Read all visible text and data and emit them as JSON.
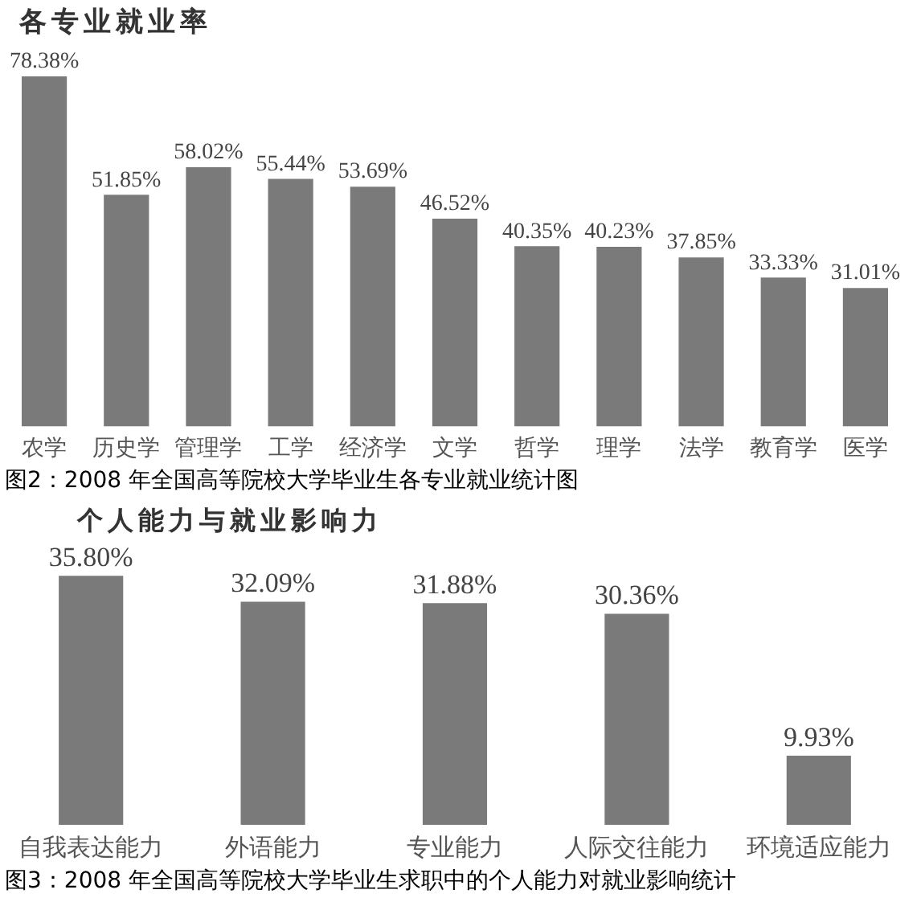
{
  "chart_data": [
    {
      "type": "bar",
      "title": "各专业就业率",
      "categories": [
        "农学",
        "历史学",
        "管理学",
        "工学",
        "经济学",
        "文学",
        "哲学",
        "理学",
        "法学",
        "教育学",
        "医学"
      ],
      "values": [
        78.38,
        51.85,
        58.02,
        55.44,
        53.69,
        46.52,
        40.35,
        40.23,
        37.85,
        33.33,
        31.01
      ],
      "value_labels": [
        "78.38%",
        "51.85%",
        "58.02%",
        "55.44%",
        "53.69%",
        "46.52%",
        "40.35%",
        "40.23%",
        "37.85%",
        "33.33%",
        "31.01%"
      ],
      "color": "#7a7a7a",
      "tick_labels": "x",
      "annotations": [
        "图2：2008 年全国高等院校大学毕业生各专业就业统计图"
      ]
    },
    {
      "type": "bar",
      "title": "个人能力与就业影响力",
      "categories": [
        "自我表达能力",
        "外语能力",
        "专业能力",
        "人际交往能力",
        "环境适应能力"
      ],
      "values": [
        35.8,
        32.09,
        31.88,
        30.36,
        9.93
      ],
      "value_labels": [
        "35.80%",
        "32.09%",
        "31.88%",
        "30.36%",
        "9.93%"
      ],
      "color": "#7a7a7a",
      "tick_labels": "x",
      "annotations": [
        "图3：2008 年全国高等院校大学毕业生求职中的个人能力对就业影响统计"
      ]
    }
  ]
}
